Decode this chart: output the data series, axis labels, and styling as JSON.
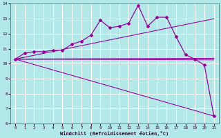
{
  "xlabel": "Windchill (Refroidissement éolien,°C)",
  "bg_color": "#b2e8e8",
  "line_color": "#990099",
  "xlim": [
    0,
    21
  ],
  "ylim": [
    6,
    14
  ],
  "xticks": [
    0,
    1,
    2,
    3,
    4,
    5,
    6,
    7,
    8,
    9,
    10,
    11,
    12,
    13,
    14,
    15,
    16,
    17,
    18,
    19,
    20,
    21
  ],
  "yticks": [
    6,
    7,
    8,
    9,
    10,
    11,
    12,
    13,
    14
  ],
  "grid_color": "#ffffff",
  "series_observed": {
    "x": [
      0,
      1,
      2,
      3,
      4,
      5,
      6,
      7,
      8,
      9,
      10,
      11,
      12,
      13,
      14,
      15,
      16,
      17,
      18,
      19,
      20,
      21
    ],
    "y": [
      10.3,
      10.7,
      10.8,
      10.8,
      10.9,
      10.9,
      11.3,
      11.5,
      11.9,
      12.9,
      12.4,
      12.5,
      12.7,
      13.9,
      12.5,
      13.1,
      13.1,
      11.8,
      10.6,
      10.3,
      9.9,
      6.5
    ]
  },
  "series_trend_up": {
    "x": [
      0,
      21
    ],
    "y": [
      10.3,
      13.0
    ]
  },
  "series_flat1": {
    "x": [
      0,
      21
    ],
    "y": [
      10.3,
      10.35
    ]
  },
  "series_flat2": {
    "x": [
      0,
      21
    ],
    "y": [
      10.3,
      10.25
    ]
  },
  "series_down": {
    "x": [
      0,
      21
    ],
    "y": [
      10.3,
      6.5
    ]
  }
}
